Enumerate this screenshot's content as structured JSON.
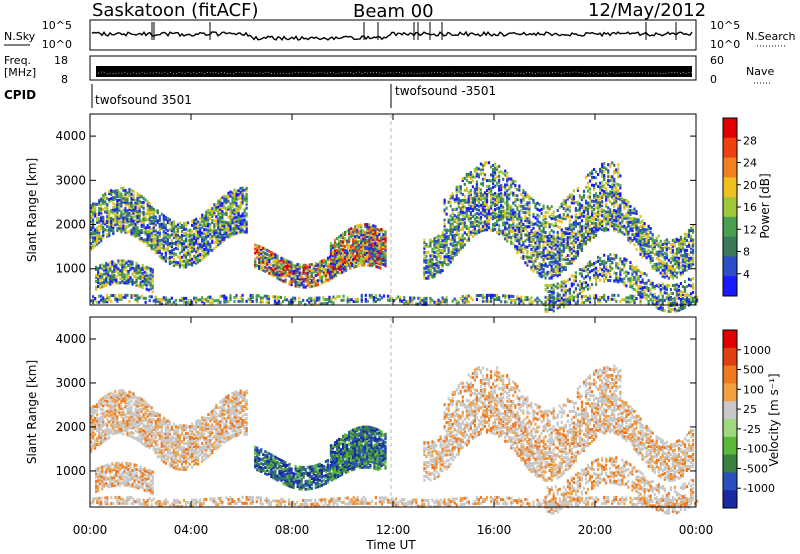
{
  "header": {
    "station": "Saskatoon (fitACF)",
    "beam": "Beam 00",
    "date": "12/May/2012"
  },
  "side_labels": {
    "nsky": "N.Sky",
    "freq_line1": "Freq.",
    "freq_line2": "[MHz]",
    "cpid": "CPID",
    "nsearch": "N.Search",
    "nave": "Nave",
    "nsky_top": "10^5",
    "nsky_bottom": "10^0",
    "freq_top": "18",
    "freq_bottom": "8",
    "nave_top": "60",
    "nave_bottom": "0"
  },
  "cpid_segments": [
    {
      "label": "twofsound 3501",
      "start_hour": 0
    },
    {
      "label": "twofsound -3501",
      "start_hour": 12
    }
  ],
  "colors": {
    "power_scale": [
      "#1a1aff",
      "#2a4fc8",
      "#3a7a5a",
      "#48a050",
      "#9ec83a",
      "#f0c020",
      "#f08020",
      "#f04010",
      "#e00000"
    ],
    "velocity_scale": [
      "#1a2aa0",
      "#2a50c0",
      "#3a8040",
      "#5ab83a",
      "#a0d880",
      "#c8c8c8",
      "#f0a040",
      "#f07820",
      "#e04010",
      "#e00000"
    ]
  },
  "chart_data": [
    {
      "type": "heatmap",
      "name": "power-panel",
      "ylabel": "Slant Range [km]",
      "xlabel": "",
      "x_range_hours": [
        0,
        24
      ],
      "ylim": [
        180,
        4500
      ],
      "yticks": [
        "1000",
        "2000",
        "3000",
        "4000"
      ],
      "xticks": [
        "00:00",
        "04:00",
        "08:00",
        "12:00",
        "16:00",
        "20:00",
        "00:00"
      ],
      "colorbar_label": "Power [dB]",
      "colorbar_ticks": [
        "4",
        "8",
        "12",
        "16",
        "20",
        "24",
        "28"
      ],
      "colorbar_range": [
        0,
        30
      ]
    },
    {
      "type": "heatmap",
      "name": "velocity-panel",
      "ylabel": "Slant Range [km]",
      "xlabel": "Time UT",
      "x_range_hours": [
        0,
        24
      ],
      "ylim": [
        180,
        4500
      ],
      "yticks": [
        "1000",
        "2000",
        "3000",
        "4000"
      ],
      "xticks": [
        "00:00",
        "04:00",
        "08:00",
        "12:00",
        "16:00",
        "20:00",
        "00:00"
      ],
      "colorbar_label": "Velocity [m s⁻¹]",
      "colorbar_ticks": [
        "1000",
        "500",
        "100",
        "25",
        "-25",
        "-100",
        "-500",
        "-1000"
      ]
    }
  ]
}
